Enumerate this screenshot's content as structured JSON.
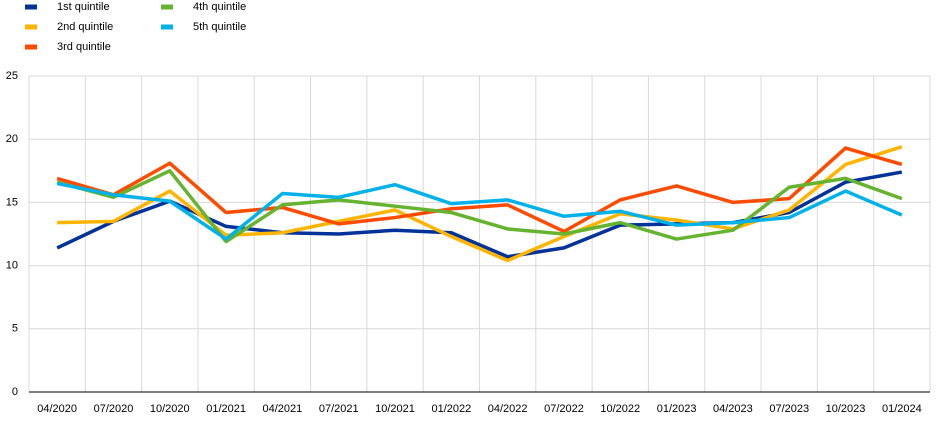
{
  "chart_data": {
    "type": "line",
    "categories": [
      "04/2020",
      "07/2020",
      "10/2020",
      "01/2021",
      "04/2021",
      "07/2021",
      "10/2021",
      "01/2022",
      "04/2022",
      "07/2022",
      "10/2022",
      "01/2023",
      "04/2023",
      "07/2023",
      "10/2023",
      "01/2024"
    ],
    "series": [
      {
        "name": "1st quintile",
        "color": "#003299",
        "values": [
          11.4,
          13.5,
          15.1,
          13.1,
          12.6,
          12.5,
          12.8,
          12.6,
          10.7,
          11.4,
          13.2,
          13.3,
          13.4,
          14.2,
          16.6,
          17.4
        ]
      },
      {
        "name": "2nd quintile",
        "color": "#ffb400",
        "values": [
          13.4,
          13.5,
          15.9,
          12.4,
          12.6,
          13.5,
          14.4,
          12.3,
          10.4,
          12.3,
          14.1,
          13.6,
          12.9,
          14.4,
          18.0,
          19.4
        ]
      },
      {
        "name": "3rd quintile",
        "color": "#ff4b00",
        "values": [
          16.9,
          15.6,
          18.1,
          14.2,
          14.6,
          13.3,
          13.8,
          14.5,
          14.8,
          12.7,
          15.2,
          16.3,
          15.0,
          15.3,
          19.3,
          18.0
        ]
      },
      {
        "name": "4th quintile",
        "color": "#65b32e",
        "values": [
          16.6,
          15.4,
          17.5,
          11.9,
          14.8,
          15.2,
          14.7,
          14.2,
          12.9,
          12.5,
          13.4,
          12.1,
          12.8,
          16.2,
          16.9,
          15.3
        ]
      },
      {
        "name": "5th quintile",
        "color": "#00b1ea",
        "values": [
          16.5,
          15.6,
          15.1,
          12.1,
          15.7,
          15.4,
          16.4,
          14.9,
          15.2,
          13.9,
          14.3,
          13.2,
          13.4,
          13.8,
          15.9,
          14.0
        ]
      }
    ],
    "ylim": [
      0,
      25
    ],
    "yticks": [
      0,
      5,
      10,
      15,
      20,
      25
    ],
    "grid": true
  }
}
